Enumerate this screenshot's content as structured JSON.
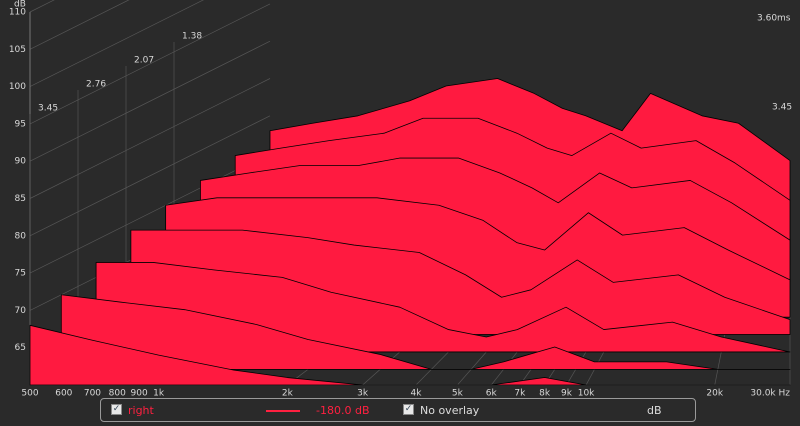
{
  "chart_data": {
    "type": "waterfall",
    "y_label": "dB",
    "color": "#ff1a40",
    "ylim": [
      60,
      110
    ],
    "yticks": [
      65,
      70,
      75,
      80,
      85,
      90,
      95,
      100,
      105,
      110
    ],
    "xlim": [
      500,
      30000
    ],
    "log_x": true,
    "xticks": [
      {
        "value": 500,
        "label": "500"
      },
      {
        "value": 600,
        "label": "600"
      },
      {
        "value": 700,
        "label": "700"
      },
      {
        "value": 800,
        "label": "800"
      },
      {
        "value": 900,
        "label": "900"
      },
      {
        "value": 1000,
        "label": "1k"
      },
      {
        "value": 2000,
        "label": "2k"
      },
      {
        "value": 3000,
        "label": "3k"
      },
      {
        "value": 4000,
        "label": "4k"
      },
      {
        "value": 5000,
        "label": "5k"
      },
      {
        "value": 6000,
        "label": "6k"
      },
      {
        "value": 7000,
        "label": "7k"
      },
      {
        "value": 8000,
        "label": "8k"
      },
      {
        "value": 9000,
        "label": "9k"
      },
      {
        "value": 10000,
        "label": "10k"
      },
      {
        "value": 20000,
        "label": "20k"
      },
      {
        "value": 30000,
        "label": "30.0k Hz"
      }
    ],
    "time_ticks": [
      3.45,
      2.76,
      2.07,
      1.38
    ],
    "time_end": {
      "value": 3.6,
      "label": "3.60ms"
    },
    "frequencies": [
      500,
      700,
      1000,
      1500,
      2000,
      3000,
      4000,
      5000,
      6000,
      8000,
      10000,
      15000,
      20000,
      30000
    ],
    "slices": [
      {
        "time": 0,
        "values": [
          78,
          79,
          80,
          82,
          84,
          85,
          83,
          81,
          80,
          78,
          83,
          80,
          79,
          74
        ]
      },
      {
        "time": 0.5,
        "values": [
          77,
          78,
          79,
          80,
          82,
          82,
          80,
          78,
          77,
          80,
          78,
          79,
          76,
          71
        ]
      },
      {
        "time": 1.0,
        "values": [
          76,
          77,
          78,
          78,
          79,
          79,
          77,
          75,
          73,
          77,
          75,
          76,
          73,
          68
        ]
      },
      {
        "time": 1.5,
        "values": [
          75,
          76,
          76,
          76,
          76,
          75,
          73,
          70,
          69,
          74,
          71,
          72,
          69,
          65
        ]
      },
      {
        "time": 2.0,
        "values": [
          74,
          74,
          74,
          73,
          72,
          71,
          68,
          65,
          66,
          70,
          67,
          68,
          65,
          62
        ]
      },
      {
        "time": 2.5,
        "values": [
          72,
          72,
          71,
          70,
          68,
          66,
          63,
          62,
          63,
          66,
          63,
          64,
          62,
          60
        ]
      },
      {
        "time": 3.0,
        "values": [
          70,
          69,
          68,
          66,
          64,
          62,
          60,
          60,
          61,
          63,
          61,
          61,
          60,
          60
        ]
      },
      {
        "time": 3.45,
        "values": [
          68,
          66,
          64,
          62,
          61,
          60,
          60,
          60,
          60,
          61,
          60,
          60,
          60,
          60
        ]
      }
    ]
  },
  "legend": {
    "series_name": "right",
    "level": "-180.0 dB",
    "overlay": "No overlay",
    "unit": "dB"
  }
}
